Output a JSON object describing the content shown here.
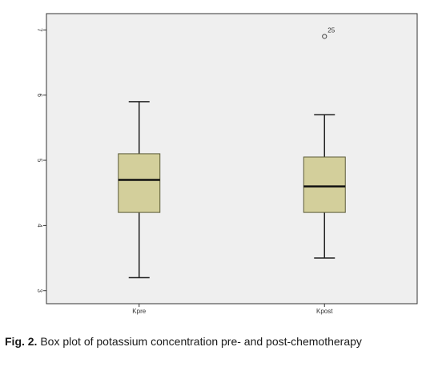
{
  "caption": {
    "label": "Fig. 2.",
    "text": "Box plot of potassium concentration pre- and post-chemotherapy"
  },
  "chart_data": {
    "type": "box",
    "title": "",
    "xlabel": "",
    "ylabel": "",
    "ylim": [
      2.8,
      7.25
    ],
    "yticks": [
      3,
      4,
      5,
      6,
      7
    ],
    "grid": false,
    "legend": "none",
    "colors": {
      "plot_bg": "#efefef",
      "box_fill": "#d3cf9b",
      "box_edge": "#5c5c38",
      "axis": "#333333"
    },
    "categories": [
      "Kpre",
      "Kpost"
    ],
    "boxes": [
      {
        "category": "Kpre",
        "min": 3.2,
        "q1": 4.2,
        "median": 4.7,
        "q3": 5.1,
        "max": 5.9,
        "outliers": []
      },
      {
        "category": "Kpost",
        "min": 3.5,
        "q1": 4.2,
        "median": 4.6,
        "q3": 5.05,
        "max": 5.7,
        "outliers": [
          {
            "value": 6.9,
            "label": "25"
          }
        ]
      }
    ]
  }
}
